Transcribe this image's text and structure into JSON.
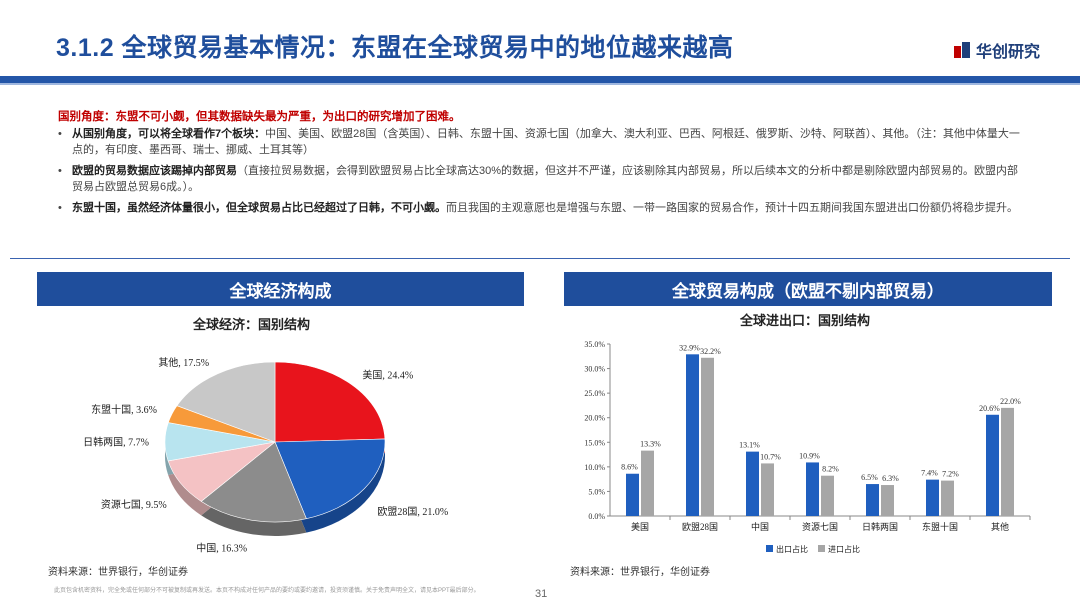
{
  "header": {
    "title": "3.1.2 全球贸易基本情况：东盟在全球贸易中的地位越来越高",
    "logo_text": "华创研究",
    "brand_color": "#1f4e9c"
  },
  "intro": "国别角度：东盟不可小觑，但其数据缺失最为严重，为出口的研究增加了困难。",
  "bullets": [
    {
      "bold": "从国别角度，可以将全球看作7个板块：",
      "text": "中国、美国、欧盟28国（含英国）、日韩、东盟十国、资源七国（加拿大、澳大利亚、巴西、阿根廷、俄罗斯、沙特、阿联酋）、其他。（注：其他中体量大一点的，有印度、墨西哥、瑞士、挪威、土耳其等）"
    },
    {
      "bold": "欧盟的贸易数据应该踢掉内部贸易",
      "text": "（直接拉贸易数据，会得到欧盟贸易占比全球高达30%的数据，但这并不严谨，应该剔除其内部贸易，所以后续本文的分析中都是剔除欧盟内部贸易的。欧盟内部贸易占欧盟总贸易6成。）。"
    },
    {
      "bold": "东盟十国，虽然经济体量很小，但全球贸易占比已经超过了日韩，不可小觑。",
      "text": "而且我国的主观意愿也是增强与东盟、一带一路国家的贸易合作，预计十四五期间我国东盟进出口份额仍将稳步提升。"
    }
  ],
  "left_panel": {
    "header": "全球经济构成",
    "chart_title": "全球经济：国别结构",
    "source": "资料来源：世界银行，华创证券"
  },
  "right_panel": {
    "header": "全球贸易构成（欧盟不剔内部贸易）",
    "chart_title": "全球进出口：国别结构",
    "source": "资料来源：世界银行，华创证券"
  },
  "chart_data": [
    {
      "type": "pie",
      "title": "全球经济：国别结构",
      "slices": [
        {
          "label": "美国, 24.4%",
          "value": 24.4,
          "color": "#e8141c"
        },
        {
          "label": "欧盟28国, 21.0%",
          "value": 21.0,
          "color": "#1f5fbf"
        },
        {
          "label": "中国, 16.3%",
          "value": 16.3,
          "color": "#8c8c8c"
        },
        {
          "label": "资源七国, 9.5%",
          "value": 9.5,
          "color": "#f4c2c4"
        },
        {
          "label": "日韩两国, 7.7%",
          "value": 7.7,
          "color": "#b8e4ef"
        },
        {
          "label": "东盟十国, 3.6%",
          "value": 3.6,
          "color": "#f79a3a"
        },
        {
          "label": "其他, 17.5%",
          "value": 17.5,
          "color": "#c8c8c8"
        }
      ]
    },
    {
      "type": "bar",
      "title": "全球进出口：国别结构",
      "categories": [
        "美国",
        "欧盟28国",
        "中国",
        "资源七国",
        "日韩两国",
        "东盟十国",
        "其他"
      ],
      "series": [
        {
          "name": "出口占比",
          "values": [
            8.6,
            32.9,
            13.1,
            10.9,
            6.5,
            7.4,
            20.6
          ],
          "labels": [
            "8.6%",
            "32.9%",
            "13.1%",
            "10.9%",
            "6.5%",
            "7.4%",
            "20.6%"
          ],
          "color": "#1f5fbf"
        },
        {
          "name": "进口占比",
          "values": [
            13.3,
            32.2,
            10.7,
            8.2,
            6.3,
            7.2,
            22.0
          ],
          "labels": [
            "13.3%",
            "32.2%",
            "10.7%",
            "8.2%",
            "6.3%",
            "7.2%",
            "22.0%"
          ],
          "color": "#a6a6a6"
        }
      ],
      "ylim": [
        0,
        35
      ],
      "yticks": [
        "0.0%",
        "5.0%",
        "10.0%",
        "15.0%",
        "20.0%",
        "25.0%",
        "30.0%",
        "35.0%"
      ]
    }
  ],
  "footer": {
    "disclaimer": "此页包含机密资料，完全免或任何部分不可被复制或再发送。本页不构成对任何产品的要约或要约邀请，投资须谨慎。关于免责声明全文，请见本PPT最后部分。",
    "page_number": "31"
  }
}
